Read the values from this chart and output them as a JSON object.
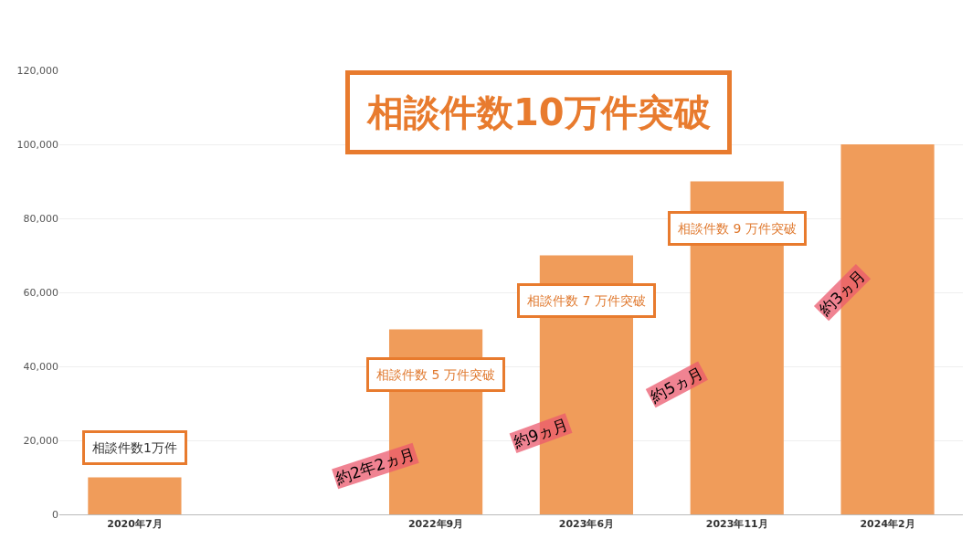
{
  "chart_data": {
    "type": "bar",
    "title": "相談件数10万件突破",
    "categories": [
      "2020年7月",
      null,
      "2022年9月",
      "2023年6月",
      "2023年11月",
      "2024年2月"
    ],
    "values": [
      10000,
      null,
      50000,
      70000,
      90000,
      100000
    ],
    "color": "#f09c5a",
    "ylim": [
      0,
      120000
    ],
    "yticks": [
      {
        "value": 0,
        "label": "0"
      },
      {
        "value": 20000,
        "label": "20,000"
      },
      {
        "value": 40000,
        "label": "40,000"
      },
      {
        "value": 60000,
        "label": "60,000"
      },
      {
        "value": 80000,
        "label": "80,000"
      },
      {
        "value": 100000,
        "label": "100,000"
      },
      {
        "value": 120000,
        "label": "120,000"
      }
    ],
    "grid": "y",
    "legend": false,
    "annotations": [
      "相談件数1万件",
      "相談件数 5 万件突破",
      "相談件数 7 万件突破",
      "相談件数 9 万件突破",
      "約2年2ヵ月",
      "約9ヵ月",
      "約5ヵ月",
      "約3ヵ月"
    ]
  }
}
